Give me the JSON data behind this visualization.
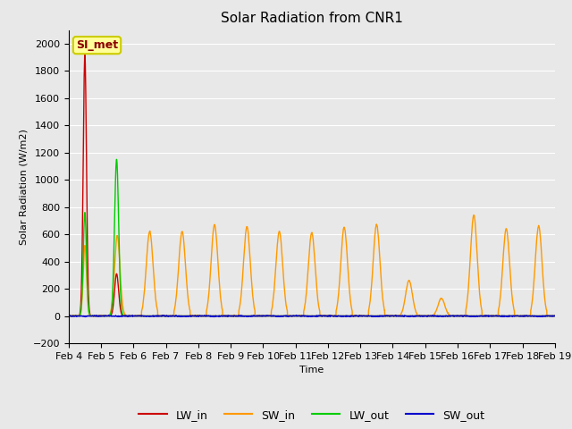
{
  "title": "Solar Radiation from CNR1",
  "xlabel": "Time",
  "ylabel": "Solar Radiation (W/m2)",
  "ylim": [
    -200,
    2100
  ],
  "yticks": [
    -200,
    0,
    200,
    400,
    600,
    800,
    1000,
    1200,
    1400,
    1600,
    1800,
    2000
  ],
  "n_days": 15,
  "xtick_labels": [
    "Feb 4",
    "Feb 5",
    "Feb 6",
    "Feb 7",
    "Feb 8",
    "Feb 9",
    "Feb 10",
    "Feb 11",
    "Feb 12",
    "Feb 13",
    "Feb 14",
    "Feb 15",
    "Feb 16",
    "Feb 17",
    "Feb 18",
    "Feb 19"
  ],
  "colors": {
    "LW_in": "#cc0000",
    "SW_in": "#ff9900",
    "LW_out": "#00cc00",
    "SW_out": "#0000cc"
  },
  "legend_label": "SI_met",
  "legend_box_facecolor": "#ffff99",
  "legend_box_edgecolor": "#cccc00",
  "fig_facecolor": "#e8e8e8",
  "ax_facecolor": "#e8e8e8",
  "grid_color": "#ffffff",
  "linewidth": 1.0,
  "title_fontsize": 11,
  "axis_label_fontsize": 8,
  "tick_fontsize": 8,
  "legend_fontsize": 9,
  "annot_fontsize": 9,
  "sw_in_peaks": [
    580,
    600,
    620,
    620,
    670,
    655,
    620,
    610,
    650,
    670,
    260,
    130,
    740,
    640,
    660
  ],
  "sw_out_scale": -0.08
}
